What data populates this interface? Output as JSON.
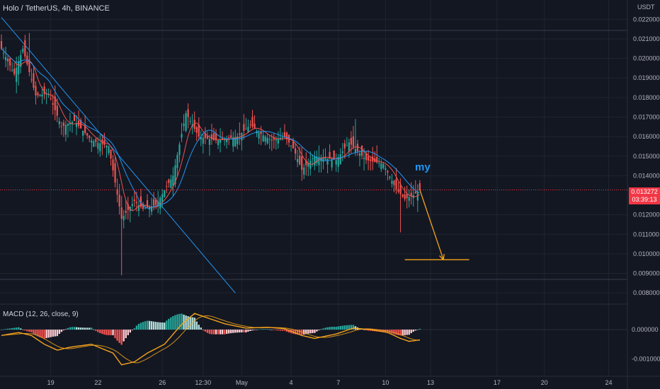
{
  "header": {
    "symbol_line": "Holo / TetherUS, 4h, BINANCE",
    "unit": "USDT",
    "macd_label": "MACD (12, 26, close, 9)"
  },
  "last_price": {
    "value": "0.013272",
    "countdown": "03:39:13"
  },
  "annotation": "my",
  "colors": {
    "background": "#131722",
    "up": "#26a69a",
    "down": "#ef5350",
    "ma_fast": "#ef5350",
    "ma_slow": "#2196f3",
    "trendline": "#2196f3",
    "arrow": "#f7a51c",
    "macd_line": "#f7a51c",
    "signal_line": "#f7a51c",
    "last_price_tag": "#f23645"
  },
  "chart_data": [
    {
      "type": "candlestick",
      "title": "Holo / TetherUS, 4h, BINANCE",
      "x_ticks": [
        "19",
        "22",
        "26",
        "12:30",
        "May",
        "4",
        "7",
        "10",
        "13",
        "17",
        "20",
        "24"
      ],
      "y_ticks": [
        "0.022000",
        "0.021000",
        "0.020000",
        "0.019000",
        "0.018000",
        "0.017000",
        "0.016000",
        "0.015000",
        "0.014000",
        "0.012000",
        "0.011000",
        "0.010000",
        "0.009000",
        "0.008000"
      ],
      "ylim": [
        0.0075,
        0.0227
      ],
      "grid": true,
      "anchors": [
        [
          0,
          0.0205
        ],
        [
          6,
          0.0192
        ],
        [
          10,
          0.0205
        ],
        [
          16,
          0.0181
        ],
        [
          22,
          0.0182
        ],
        [
          28,
          0.0165
        ],
        [
          34,
          0.0168
        ],
        [
          42,
          0.0158
        ],
        [
          50,
          0.0155
        ],
        [
          56,
          0.0118
        ],
        [
          62,
          0.0127
        ],
        [
          66,
          0.0123
        ],
        [
          72,
          0.0125
        ],
        [
          80,
          0.014
        ],
        [
          86,
          0.0172
        ],
        [
          92,
          0.016
        ],
        [
          100,
          0.0158
        ],
        [
          110,
          0.016
        ],
        [
          116,
          0.0166
        ],
        [
          120,
          0.0162
        ],
        [
          126,
          0.0158
        ],
        [
          132,
          0.016
        ],
        [
          136,
          0.0154
        ],
        [
          140,
          0.0143
        ],
        [
          146,
          0.015
        ],
        [
          156,
          0.0148
        ],
        [
          162,
          0.0157
        ],
        [
          170,
          0.0148
        ],
        [
          178,
          0.0146
        ],
        [
          184,
          0.0133
        ],
        [
          188,
          0.0128
        ],
        [
          192,
          0.013
        ],
        [
          195,
          0.01327
        ]
      ],
      "last_price": 0.013272,
      "trendline": {
        "from": [
          0,
          0.0221
        ],
        "to": [
          109,
          0.008
        ]
      },
      "target_arrow": {
        "from": [
          195,
          0.01327
        ],
        "to": [
          206,
          0.0097
        ],
        "level": 0.0097,
        "level_to_index": 218
      }
    },
    {
      "type": "macd",
      "title": "MACD (12, 26, close, 9)",
      "params": [
        12,
        26,
        9
      ],
      "y_ticks": [
        "0.000000",
        "-0.001000"
      ],
      "ylim": [
        -0.00135,
        0.00082
      ],
      "anchors": [
        [
          0,
          -0.0002
        ],
        [
          8,
          -0.0001
        ],
        [
          14,
          -0.0002
        ],
        [
          20,
          -0.0005
        ],
        [
          26,
          -0.0007
        ],
        [
          32,
          -0.0006
        ],
        [
          42,
          -0.0005
        ],
        [
          52,
          -0.0008
        ],
        [
          56,
          -0.0012
        ],
        [
          62,
          -0.0011
        ],
        [
          68,
          -0.0008
        ],
        [
          76,
          -0.0005
        ],
        [
          84,
          0.00018
        ],
        [
          90,
          0.00055
        ],
        [
          96,
          0.0004
        ],
        [
          104,
          0.0002
        ],
        [
          114,
          5e-05
        ],
        [
          124,
          8e-05
        ],
        [
          132,
          3e-05
        ],
        [
          140,
          -0.0002
        ],
        [
          146,
          -0.0003
        ],
        [
          156,
          -0.00015
        ],
        [
          164,
          5e-05
        ],
        [
          172,
          0.0
        ],
        [
          180,
          -0.0001
        ],
        [
          186,
          -0.0003
        ],
        [
          190,
          -0.0004
        ],
        [
          195,
          -0.00035
        ]
      ]
    }
  ]
}
